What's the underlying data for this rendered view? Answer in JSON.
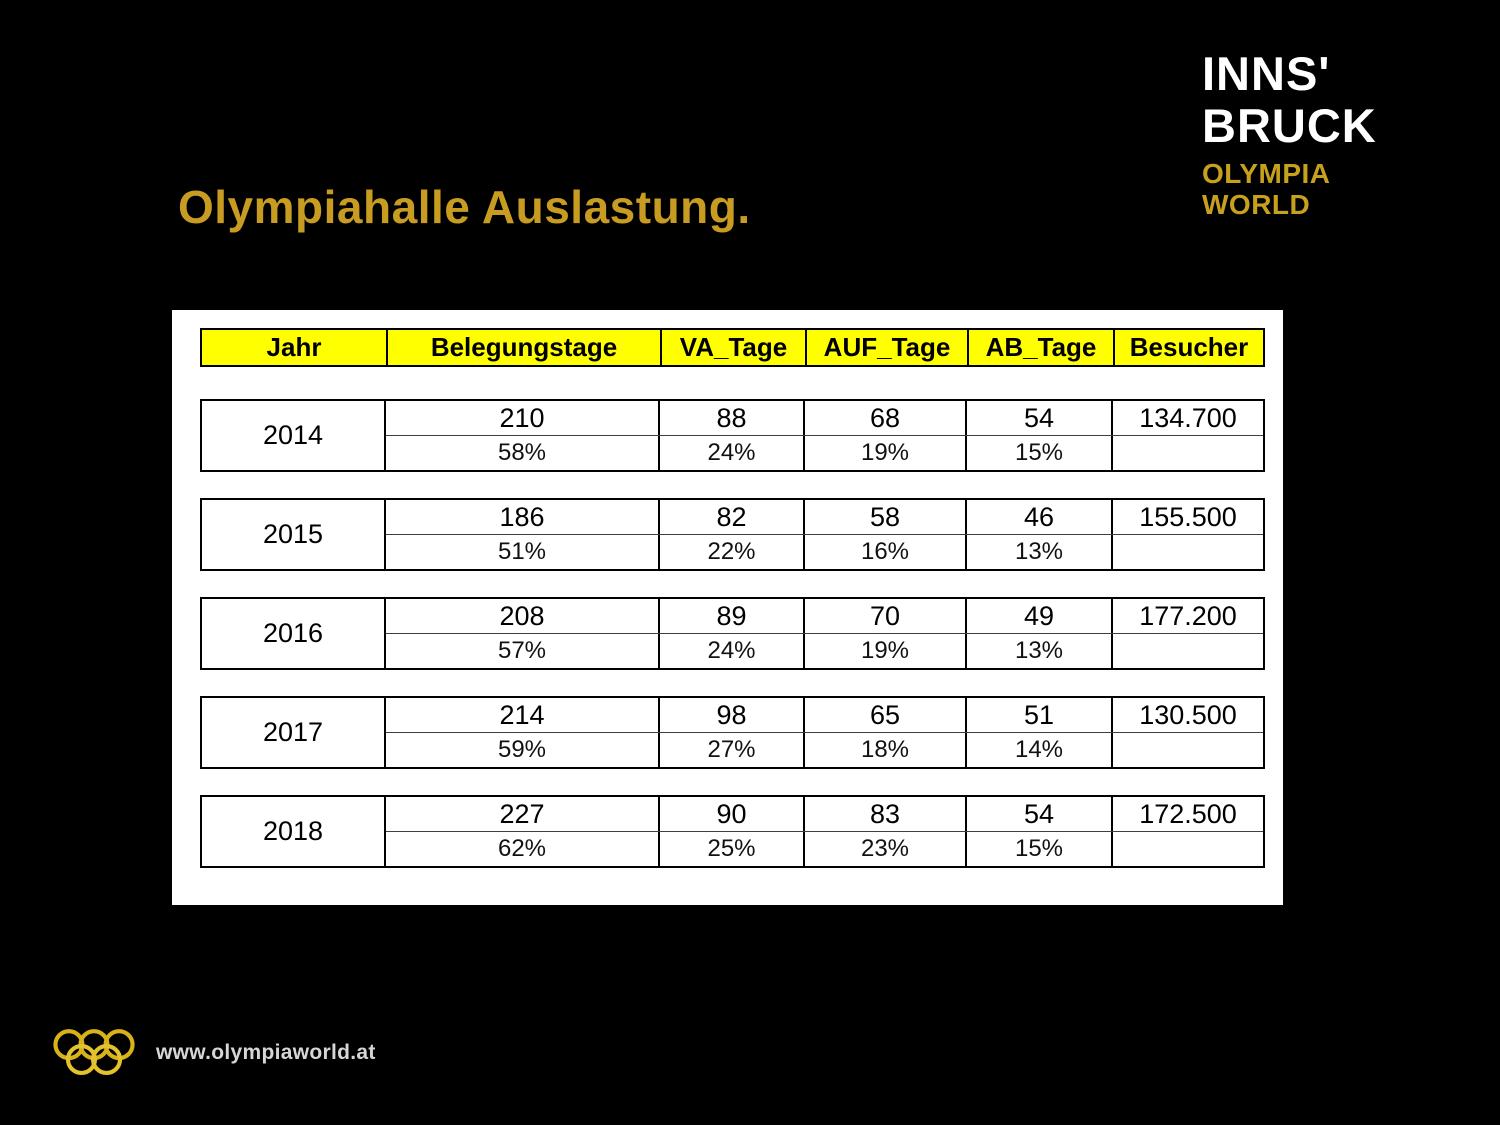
{
  "title": "Olympiahalle Auslastung.",
  "logo": {
    "line1": "INNS'",
    "line2": "BRUCK",
    "line3": "OLYMPIA",
    "line4": "WORLD"
  },
  "footer": {
    "url": "www.olympiaworld.at"
  },
  "colors": {
    "title_gold": "#C79C21",
    "logo_gold": "#C7A11C",
    "header_yellow": "#FFFF00",
    "rings_gold": "#D7B219",
    "background": "#000000",
    "panel_white": "#FFFFFF"
  },
  "table": {
    "columns": [
      "Jahr",
      "Belegungstage",
      "VA_Tage",
      "AUF_Tage",
      "AB_Tage",
      "Besucher"
    ],
    "rows": [
      {
        "jahr": "2014",
        "values": [
          "210",
          "88",
          "68",
          "54"
        ],
        "percents": [
          "58%",
          "24%",
          "19%",
          "15%"
        ],
        "besucher": "134.700"
      },
      {
        "jahr": "2015",
        "values": [
          "186",
          "82",
          "58",
          "46"
        ],
        "percents": [
          "51%",
          "22%",
          "16%",
          "13%"
        ],
        "besucher": "155.500"
      },
      {
        "jahr": "2016",
        "values": [
          "208",
          "89",
          "70",
          "49"
        ],
        "percents": [
          "57%",
          "24%",
          "19%",
          "13%"
        ],
        "besucher": "177.200"
      },
      {
        "jahr": "2017",
        "values": [
          "214",
          "98",
          "65",
          "51"
        ],
        "percents": [
          "59%",
          "27%",
          "18%",
          "14%"
        ],
        "besucher": "130.500"
      },
      {
        "jahr": "2018",
        "values": [
          "227",
          "90",
          "83",
          "54"
        ],
        "percents": [
          "62%",
          "25%",
          "23%",
          "15%"
        ],
        "besucher": "172.500"
      }
    ]
  }
}
